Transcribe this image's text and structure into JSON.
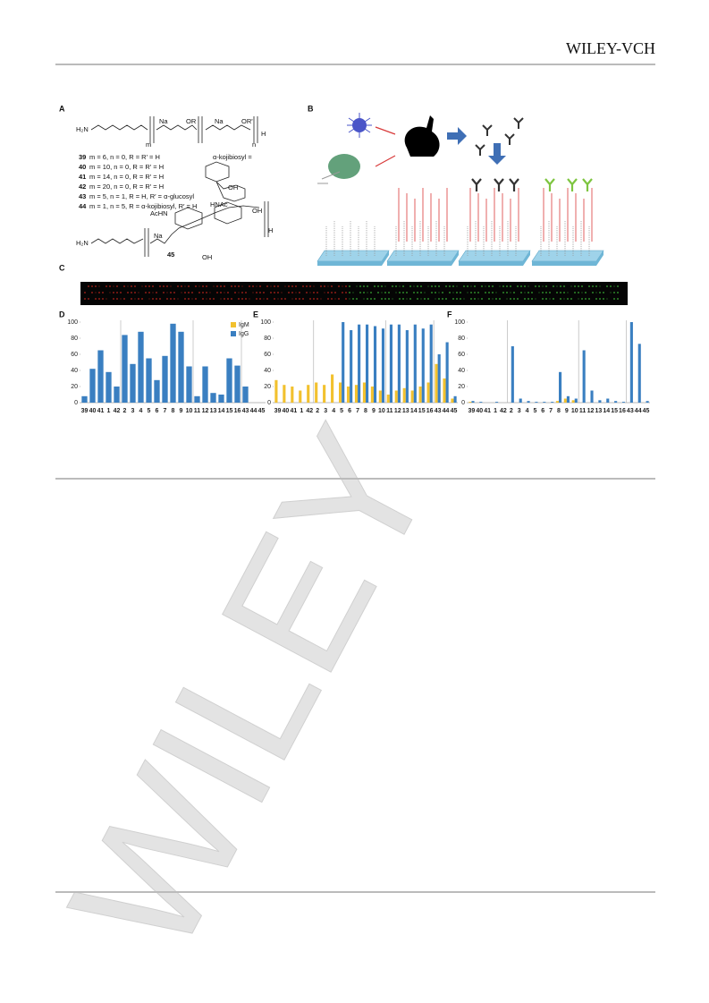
{
  "header": {
    "publisher": "WILEY-VCH"
  },
  "watermark": "WILEY",
  "figure": {
    "panel_labels": [
      "A",
      "B",
      "C",
      "D",
      "E",
      "F"
    ],
    "panel_a": {
      "structure_labels": [
        "H₂N",
        "Na",
        "OR",
        "Na",
        "OR'",
        "m",
        "n",
        "H",
        "α-kojibiosyl =",
        "AcHN",
        "HNAc",
        "OH",
        "OH",
        "H₂N",
        "Na",
        "OH",
        "H"
      ],
      "compounds": [
        {
          "id": "39",
          "text": "m = 6, n = 0, R = R′ = H"
        },
        {
          "id": "40",
          "text": "m = 10, n = 0, R = R′ = H"
        },
        {
          "id": "41",
          "text": "m = 14, n = 0, R = R′ = H"
        },
        {
          "id": "42",
          "text": "m = 20, n = 0, R = R′ = H"
        },
        {
          "id": "43",
          "text": "m = 5, n = 1, R = H, R′ = α-glucosyl"
        },
        {
          "id": "44",
          "text": "m = 1, n = 5, R = α-kojibiosyl, R′ = H"
        }
      ],
      "compound_45": "45"
    },
    "legend": [
      {
        "name": "IgM",
        "color": "#f2c12e"
      },
      {
        "name": "IgG",
        "color": "#3a7fc1"
      }
    ],
    "charts": [
      {
        "type": "bar",
        "categories": [
          "39",
          "40",
          "41",
          "1",
          "42",
          "2",
          "3",
          "4",
          "5",
          "6",
          "7",
          "8",
          "9",
          "10",
          "11",
          "12",
          "13",
          "14",
          "15",
          "16",
          "43",
          "44",
          "45"
        ],
        "ylim": [
          0,
          100
        ],
        "yticks": [
          0,
          20,
          40,
          60,
          80,
          100
        ],
        "series": [
          {
            "color": "#3a7fc1",
            "values": [
              8,
              42,
              65,
              38,
              20,
              84,
              48,
              88,
              55,
              28,
              58,
              98,
              88,
              45,
              8,
              45,
              12,
              10,
              55,
              46,
              20,
              0,
              0
            ]
          }
        ]
      },
      {
        "type": "bar",
        "categories": [
          "39",
          "40",
          "41",
          "1",
          "42",
          "2",
          "3",
          "4",
          "5",
          "6",
          "7",
          "8",
          "9",
          "10",
          "11",
          "12",
          "13",
          "14",
          "15",
          "16",
          "43",
          "44",
          "45"
        ],
        "ylim": [
          0,
          100
        ],
        "yticks": [
          0,
          20,
          40,
          60,
          80,
          100
        ],
        "series": [
          {
            "color": "#f2c12e",
            "values": [
              28,
              22,
              20,
              15,
              22,
              25,
              22,
              35,
              25,
              20,
              22,
              25,
              20,
              15,
              10,
              15,
              18,
              15,
              20,
              25,
              48,
              30,
              5
            ]
          },
          {
            "color": "#3a7fc1",
            "values": [
              0,
              0,
              0,
              0,
              0,
              0,
              0,
              0,
              100,
              90,
              97,
              97,
              95,
              92,
              97,
              97,
              90,
              97,
              92,
              97,
              60,
              75,
              8
            ]
          }
        ]
      },
      {
        "type": "bar",
        "categories": [
          "39",
          "40",
          "41",
          "1",
          "42",
          "2",
          "3",
          "4",
          "5",
          "6",
          "7",
          "8",
          "9",
          "10",
          "11",
          "12",
          "13",
          "14",
          "15",
          "16",
          "43",
          "44",
          "45"
        ],
        "ylim": [
          0,
          100
        ],
        "yticks": [
          0,
          20,
          40,
          60,
          80,
          100
        ],
        "series": [
          {
            "color": "#f2c12e",
            "values": [
              1,
              0,
              0,
              0,
              0,
              0,
              0,
              0,
              0,
              0,
              0,
              2,
              5,
              3,
              0,
              0,
              0,
              0,
              0,
              0,
              0,
              0,
              0
            ]
          },
          {
            "color": "#3a7fc1",
            "values": [
              2,
              1,
              0,
              1,
              0,
              70,
              5,
              2,
              1,
              1,
              1,
              38,
              8,
              5,
              65,
              15,
              3,
              5,
              2,
              1,
              100,
              73,
              2
            ]
          }
        ]
      }
    ]
  }
}
